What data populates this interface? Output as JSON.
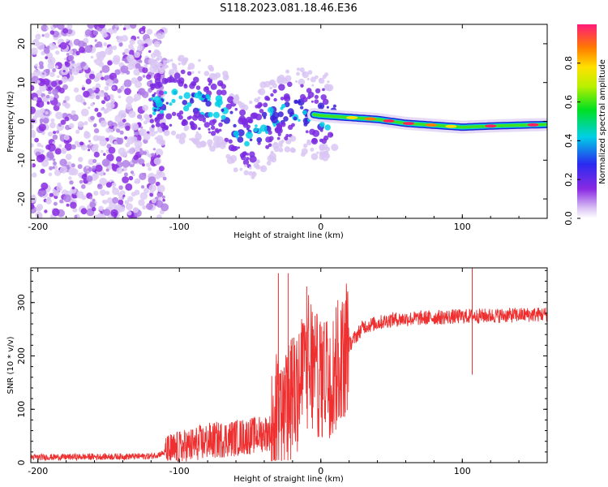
{
  "title": "S118.2023.081.18.46.E36",
  "chart_data": [
    {
      "type": "heatmap",
      "name": "spectrogram",
      "xlabel": "Height of straight line (km)",
      "ylabel": "Frequency (Hz)",
      "xlim": [
        -205,
        160
      ],
      "ylim": [
        -25,
        25
      ],
      "x_ticks": [
        -200,
        -100,
        0,
        100
      ],
      "y_ticks": [
        -20,
        -10,
        0,
        10,
        20
      ],
      "colorbar": {
        "label": "Normalized spectral amplitude",
        "range": [
          0,
          1
        ],
        "ticks": [
          0.0,
          0.2,
          0.4,
          0.6,
          0.8
        ],
        "tick_labels": [
          "0.0",
          "0.2",
          "0.4",
          "0.6",
          "0.8"
        ]
      },
      "ridge": [
        {
          "x": -110,
          "freq": 5
        },
        {
          "x": -95,
          "freq": 6
        },
        {
          "x": -80,
          "freq": 4
        },
        {
          "x": -70,
          "freq": 3
        },
        {
          "x": -60,
          "freq": -2
        },
        {
          "x": -50,
          "freq": -5
        },
        {
          "x": -40,
          "freq": -1
        },
        {
          "x": -30,
          "freq": 2
        },
        {
          "x": -20,
          "freq": 3
        },
        {
          "x": -10,
          "freq": 2
        },
        {
          "x": 0,
          "freq": 1.5
        },
        {
          "x": 20,
          "freq": 1
        },
        {
          "x": 40,
          "freq": 0.5
        },
        {
          "x": 60,
          "freq": -0.5
        },
        {
          "x": 80,
          "freq": -1
        },
        {
          "x": 100,
          "freq": -1.5
        },
        {
          "x": 120,
          "freq": -1.2
        },
        {
          "x": 140,
          "freq": -1
        },
        {
          "x": 160,
          "freq": -0.8
        }
      ]
    },
    {
      "type": "line",
      "name": "snr",
      "xlabel": "Height of straight line (km)",
      "ylabel": "SNR (10 * v/v)",
      "xlim": [
        -205,
        160
      ],
      "ylim": [
        0,
        365
      ],
      "x_ticks": [
        -200,
        -100,
        0,
        100
      ],
      "y_ticks": [
        0,
        100,
        200,
        300
      ],
      "color": "#ee3030",
      "envelope": [
        {
          "x": -205,
          "y": 10
        },
        {
          "x": -120,
          "y": 12
        },
        {
          "x": -100,
          "y": 25
        },
        {
          "x": -80,
          "y": 40
        },
        {
          "x": -50,
          "y": 50
        },
        {
          "x": -30,
          "y": 60
        },
        {
          "x": -20,
          "y": 120
        },
        {
          "x": -10,
          "y": 170
        },
        {
          "x": 0,
          "y": 160
        },
        {
          "x": 10,
          "y": 170
        },
        {
          "x": 20,
          "y": 220
        },
        {
          "x": 30,
          "y": 255
        },
        {
          "x": 50,
          "y": 268
        },
        {
          "x": 80,
          "y": 272
        },
        {
          "x": 100,
          "y": 274
        },
        {
          "x": 130,
          "y": 276
        },
        {
          "x": 160,
          "y": 278
        }
      ],
      "spikes": [
        {
          "x": -30,
          "y": 355
        },
        {
          "x": -23,
          "y": 355
        },
        {
          "x": -10,
          "y": 330
        },
        {
          "x": 107,
          "y": 365
        },
        {
          "x": 107,
          "y": 165
        }
      ]
    }
  ]
}
